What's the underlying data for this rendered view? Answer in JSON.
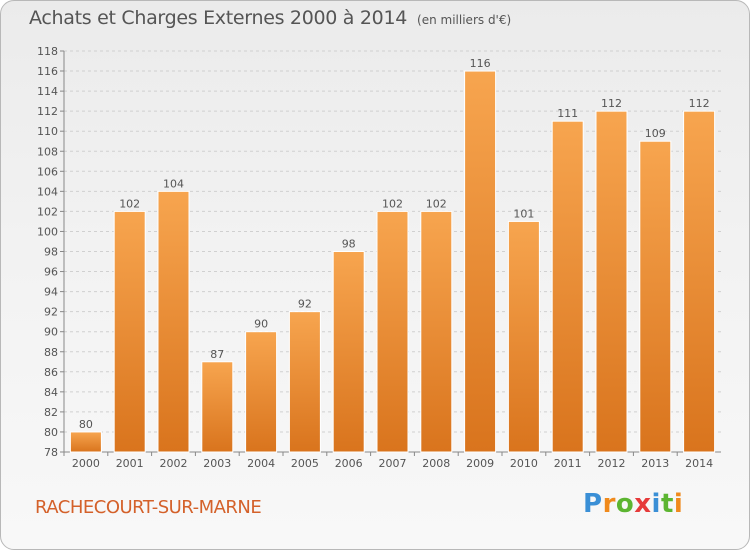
{
  "header": {
    "title": "Achats et Charges Externes 2000 à 2014",
    "subtitle": "(en milliers d'€)"
  },
  "footer": {
    "commune": "RACHECOURT-SUR-MARNE",
    "brand": "Proxiti"
  },
  "colors": {
    "bar_light": "#f7a54f",
    "bar_dark": "#d9741d",
    "grid": "#d0d0d0",
    "text": "#555555",
    "accent": "#d4612a"
  },
  "chart_data": {
    "type": "bar",
    "title": "Achats et Charges Externes 2000 à 2014",
    "subtitle": "(en milliers d'€)",
    "categories": [
      "2000",
      "2001",
      "2002",
      "2003",
      "2004",
      "2005",
      "2006",
      "2007",
      "2008",
      "2009",
      "2010",
      "2011",
      "2012",
      "2013",
      "2014"
    ],
    "values": [
      80,
      102,
      104,
      87,
      90,
      92,
      98,
      102,
      102,
      116,
      101,
      111,
      112,
      109,
      112
    ],
    "ylim": [
      78,
      118
    ],
    "yticks": [
      78,
      80,
      82,
      84,
      86,
      88,
      90,
      92,
      94,
      96,
      98,
      100,
      102,
      104,
      106,
      108,
      110,
      112,
      114,
      116,
      118
    ],
    "grid": true,
    "data_labels": true
  }
}
